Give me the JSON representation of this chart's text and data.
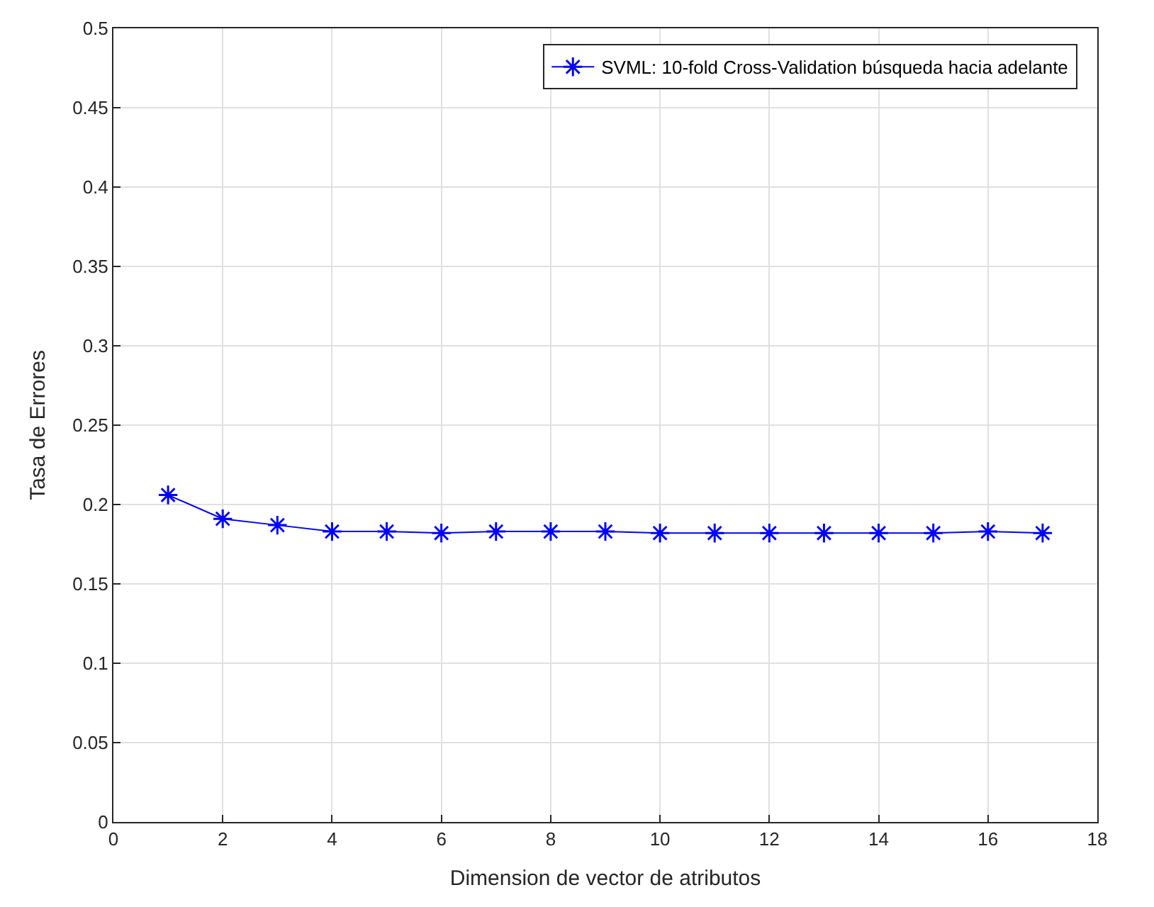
{
  "chart_data": {
    "type": "line",
    "xlabel": "Dimension de vector de atributos",
    "ylabel": "Tasa de Errores",
    "x": [
      1,
      2,
      3,
      4,
      5,
      6,
      7,
      8,
      9,
      10,
      11,
      12,
      13,
      14,
      15,
      16,
      17
    ],
    "series": [
      {
        "name": "SVML: 10-fold Cross-Validation búsqueda hacia adelante",
        "color": "#0000ff",
        "values": [
          0.206,
          0.191,
          0.187,
          0.183,
          0.183,
          0.182,
          0.183,
          0.183,
          0.183,
          0.182,
          0.182,
          0.182,
          0.182,
          0.182,
          0.182,
          0.183,
          0.182
        ]
      }
    ],
    "xlim": [
      0,
      18
    ],
    "xticks": [
      0,
      2,
      4,
      6,
      8,
      10,
      12,
      14,
      16,
      18
    ],
    "ylim": [
      0,
      0.5
    ],
    "yticks": [
      0,
      0.05,
      0.1,
      0.15,
      0.2,
      0.25,
      0.3,
      0.35,
      0.4,
      0.45,
      0.5
    ],
    "grid": true,
    "legend": "top right",
    "marker": "cross",
    "line_style": "solid"
  }
}
